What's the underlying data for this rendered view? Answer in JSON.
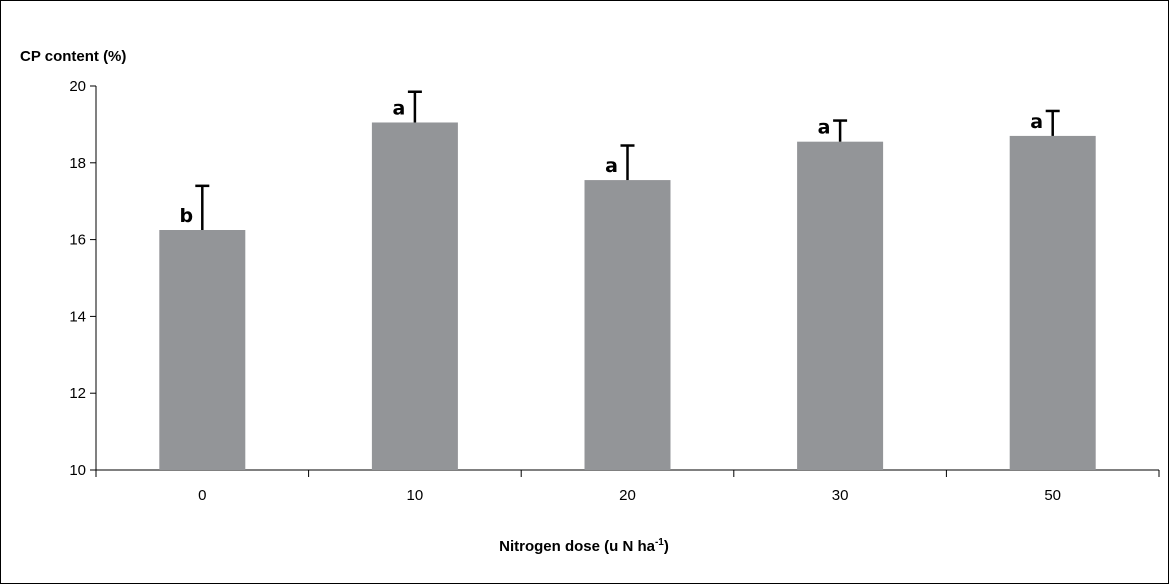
{
  "chart_data": {
    "type": "bar",
    "ylabel": "CP content (%)",
    "xlabel": {
      "text": "Nitrogen dose (u N ha",
      "superscript": "-1",
      "suffix": ")"
    },
    "ylim": [
      10,
      20
    ],
    "yticks": [
      "10",
      "12",
      "14",
      "16",
      "18",
      "20"
    ],
    "categories": [
      "0",
      "10",
      "20",
      "30",
      "50"
    ],
    "values": [
      16.25,
      19.05,
      17.55,
      18.55,
      18.7
    ],
    "errors": [
      1.15,
      0.8,
      0.9,
      0.55,
      0.65
    ],
    "significance": [
      "b",
      "a",
      "a",
      "a",
      "a"
    ],
    "bar_color": "#939598",
    "grid": false
  }
}
